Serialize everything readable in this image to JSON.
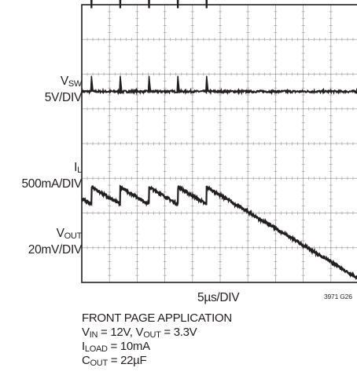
{
  "chart_data": {
    "type": "line",
    "title": "",
    "x_division": "5µs/DIV",
    "x_divisions": 10,
    "y_divisions": 8,
    "figure_id": "3971 G26",
    "switching_period_us": 5.2,
    "edge_times_us": [
      1.75,
      6.95,
      12.15,
      17.35,
      22.55
    ],
    "series": [
      {
        "name": "VSW",
        "label_main": "V",
        "label_sub": "SW",
        "scale": "5V/DIV",
        "baseline_div": 5.0,
        "spike_div": 3.9,
        "ringing_amplitude_div": 0.8
      },
      {
        "name": "IL",
        "label_main": "I",
        "label_sub": "L",
        "scale": "500mA/DIV",
        "baseline_div": 1.5,
        "pulse_height_div": 0.45
      },
      {
        "name": "VOUT",
        "label_main": "V",
        "label_sub": "OUT",
        "scale": "20mV/DIV",
        "baseline_div": -1.5,
        "ripple_peak_to_peak_div": 0.5
      }
    ],
    "conditions": [
      {
        "parts": [
          [
            "FRONT PAGE APPLICATION",
            ""
          ]
        ]
      },
      {
        "parts": [
          [
            "V",
            ""
          ],
          [
            "IN",
            "sub"
          ],
          [
            " = 12V, V",
            ""
          ],
          [
            "OUT",
            "sub"
          ],
          [
            " = 3.3V",
            ""
          ]
        ]
      },
      {
        "parts": [
          [
            "I",
            ""
          ],
          [
            "LOAD",
            "sub"
          ],
          [
            " = 10mA",
            ""
          ]
        ]
      },
      {
        "parts": [
          [
            "C",
            ""
          ],
          [
            "OUT",
            "sub"
          ],
          [
            " = 22µF",
            ""
          ]
        ]
      }
    ]
  },
  "colors": {
    "grid": "#a7a9ac",
    "trace": "#231f20",
    "ringing": "#8a8c8e",
    "frame": "#231f20"
  }
}
